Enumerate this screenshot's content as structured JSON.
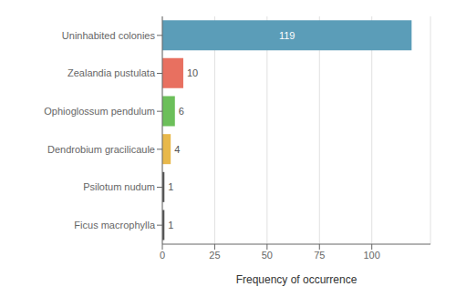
{
  "chart_data": {
    "type": "bar",
    "orientation": "horizontal",
    "categories": [
      "Ficus macrophylla",
      "Psilotum nudum",
      "Dendrobium gracilicaule",
      "Ophioglossum pendulum",
      "Zealandia pustulata",
      "Uninhabited colonies"
    ],
    "values": [
      1,
      1,
      4,
      6,
      10,
      119
    ],
    "colors": [
      "#555555",
      "#555555",
      "#E8B84B",
      "#6CBF5A",
      "#E87060",
      "#5B9DB8"
    ],
    "xlabel": "Frequency of occurrence",
    "xlim": [
      0,
      128
    ],
    "xticks": [
      0,
      25,
      50,
      75,
      100
    ],
    "grid": true,
    "data_labels": true
  }
}
